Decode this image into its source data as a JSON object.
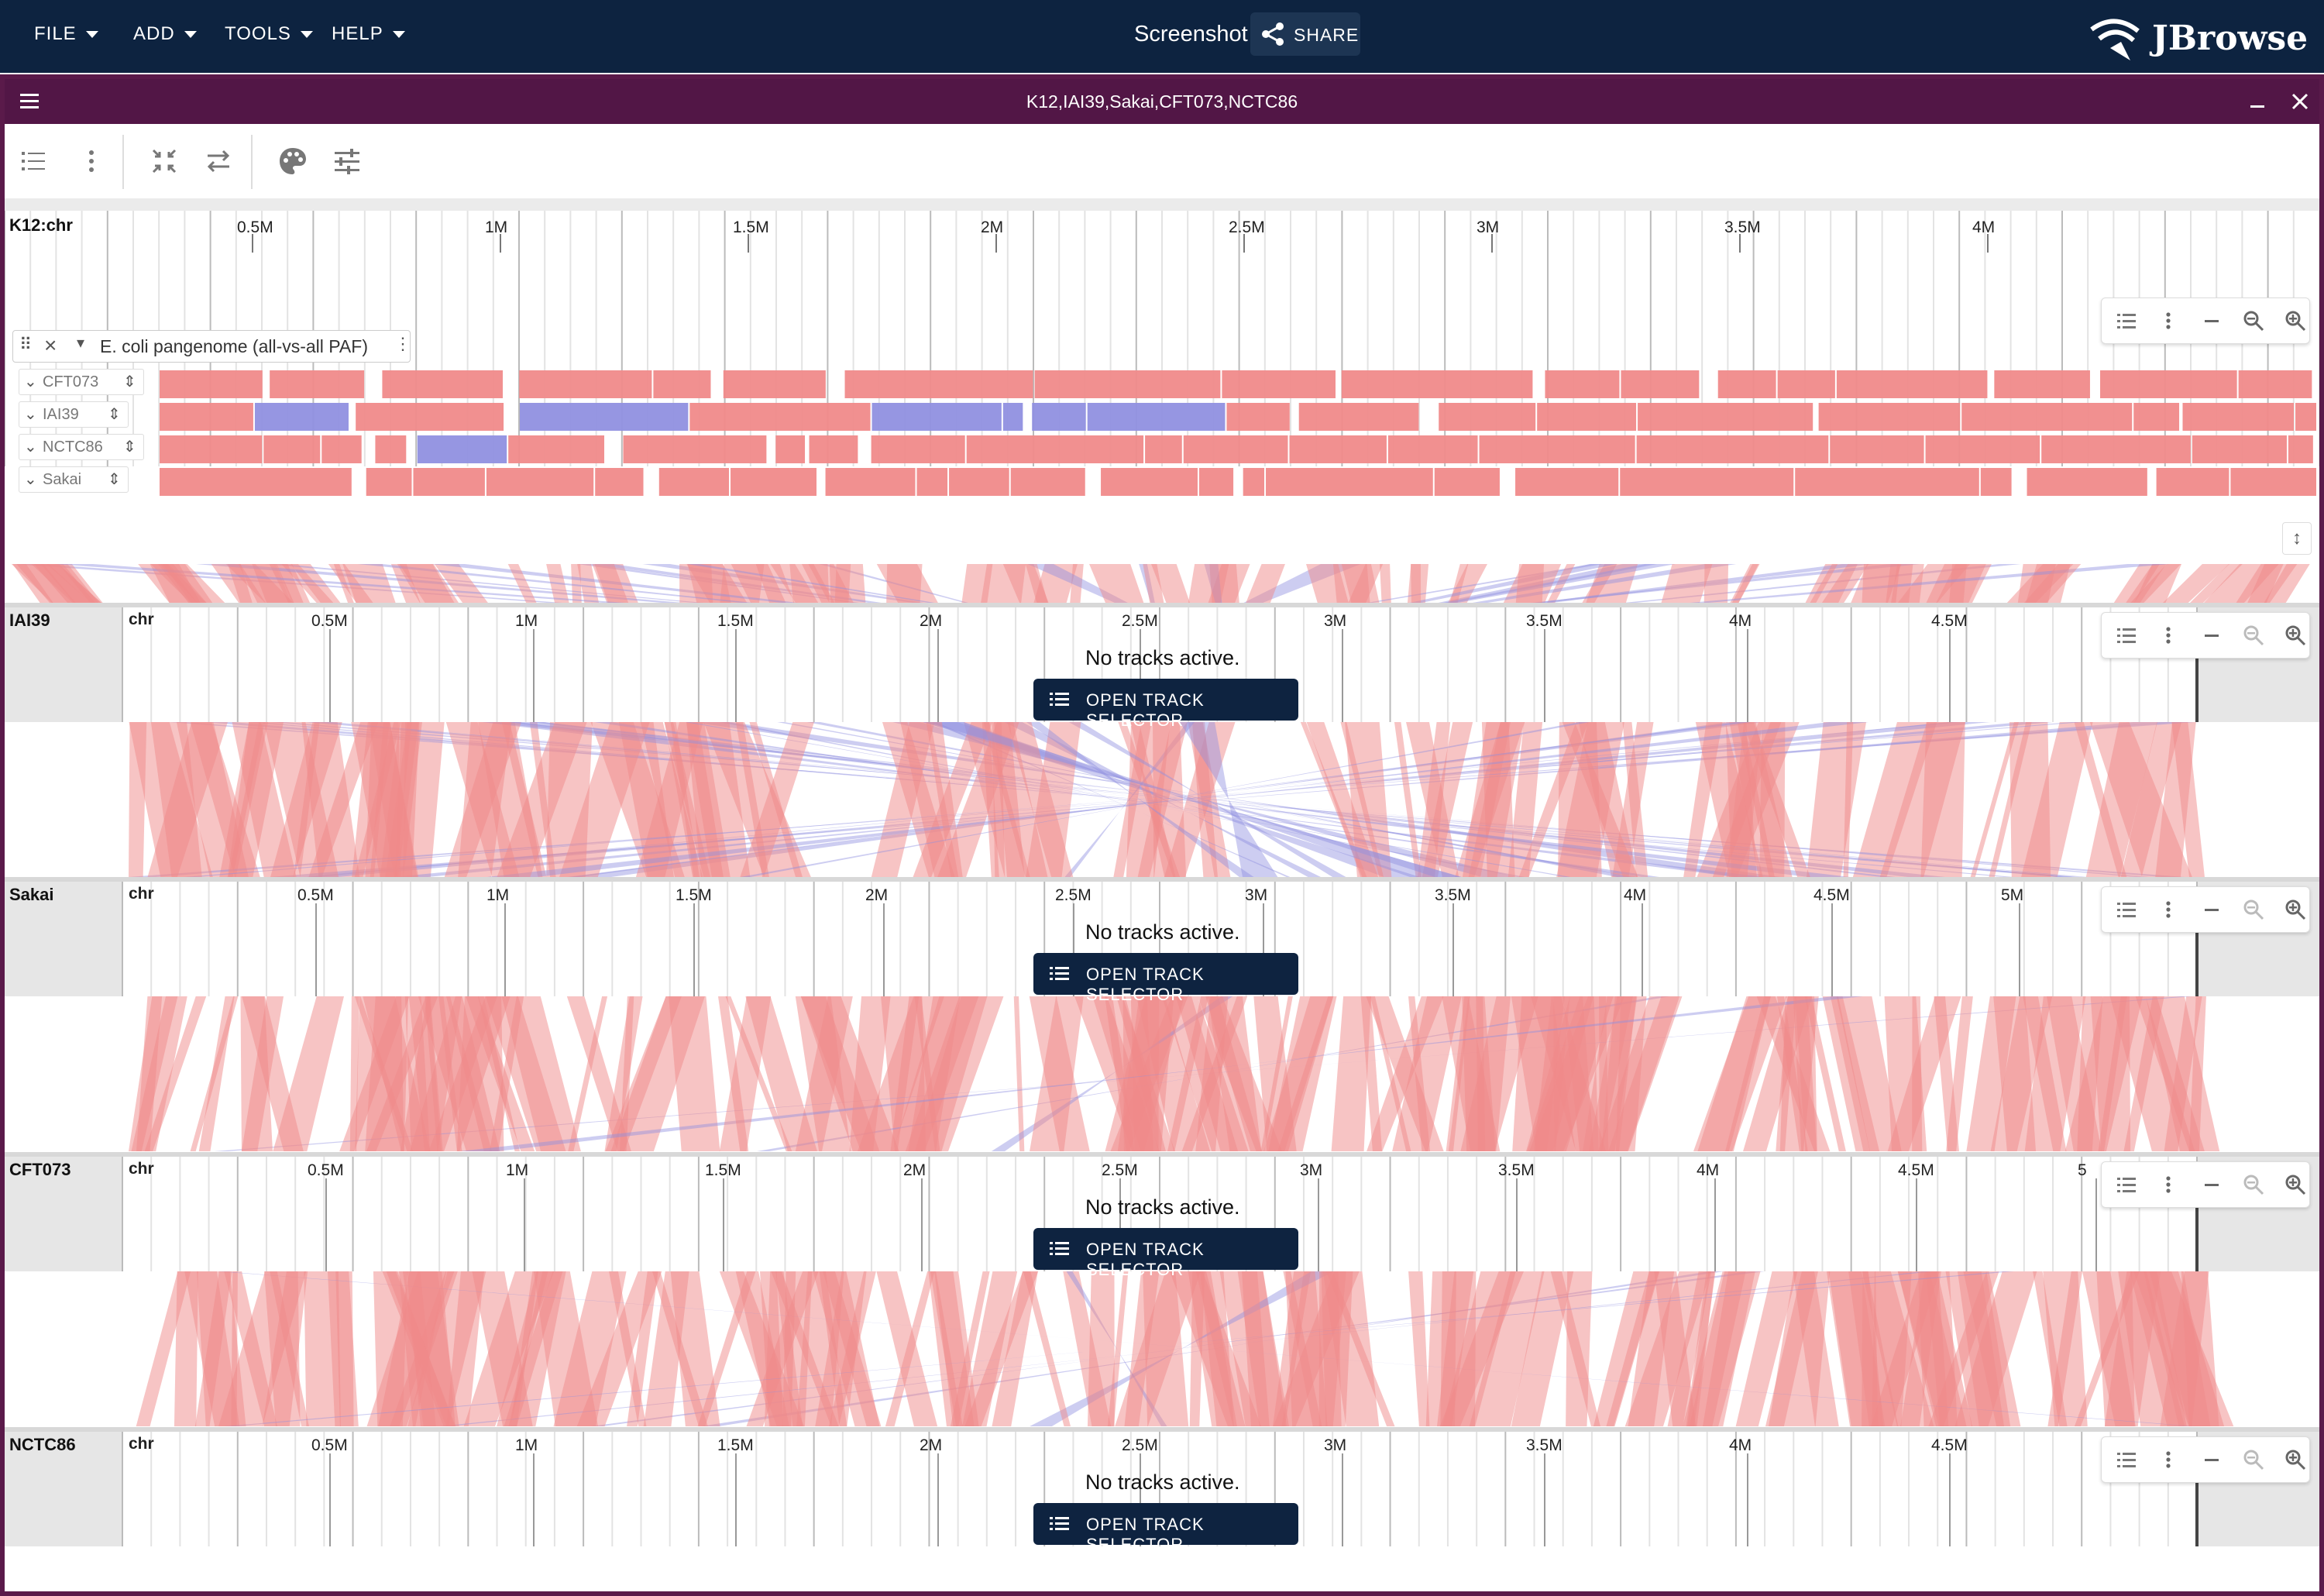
{
  "app": {
    "menus": [
      "FILE",
      "ADD",
      "TOOLS",
      "HELP"
    ],
    "screenshot_title": "Screenshot",
    "share_label": "SHARE",
    "logo_text": "JBrowse"
  },
  "view": {
    "title": "K12,IAI39,Sakai,CFT073,NCTC86",
    "minimize_icon": "minimize-icon",
    "close_icon": "close-icon",
    "toolbar_icons": [
      "track-list-icon",
      "more-vert-icon",
      "collapse-icon",
      "swap-icon",
      "palette-icon",
      "tune-icon"
    ]
  },
  "genomes": [
    {
      "name": "K12:chr",
      "label": "K12:chr",
      "ticks": [
        "0.5M",
        "1M",
        "1.5M",
        "2M",
        "2.5M",
        "3M",
        "3.5M",
        "4M"
      ]
    },
    {
      "name": "IAI39",
      "label": "IAI39",
      "chr": "chr",
      "ticks": [
        "0.5M",
        "1M",
        "1.5M",
        "2M",
        "2.5M",
        "3M",
        "3.5M",
        "4M",
        "4.5M"
      ],
      "no_tracks": "No tracks active.",
      "button": "OPEN TRACK SELECTOR"
    },
    {
      "name": "Sakai",
      "label": "Sakai",
      "chr": "chr",
      "ticks": [
        "0.5M",
        "1M",
        "1.5M",
        "2M",
        "2.5M",
        "3M",
        "3.5M",
        "4M",
        "4.5M",
        "5M"
      ],
      "no_tracks": "No tracks active.",
      "button": "OPEN TRACK SELECTOR"
    },
    {
      "name": "CFT073",
      "label": "CFT073",
      "chr": "chr",
      "ticks": [
        "0.5M",
        "1M",
        "1.5M",
        "2M",
        "2.5M",
        "3M",
        "3.5M",
        "4M",
        "4.5M",
        "5"
      ],
      "no_tracks": "No tracks active.",
      "button": "OPEN TRACK SELECTOR"
    },
    {
      "name": "NCTC86",
      "label": "NCTC86",
      "chr": "chr",
      "ticks": [
        "0.5M",
        "1M",
        "1.5M",
        "2M",
        "2.5M",
        "3M",
        "3.5M",
        "4M",
        "4.5M"
      ],
      "no_tracks": "No tracks active.",
      "button": "OPEN TRACK SELECTOR"
    }
  ],
  "track": {
    "name": "E. coli pangenome (all-vs-all PAF)",
    "subtracks": [
      "CFT073",
      "IAI39",
      "NCTC86",
      "Sakai"
    ]
  },
  "colors": {
    "topbar": "#0d2340",
    "view_header": "#521646",
    "forward_match": "#f08a8a",
    "reverse_match": "#9090e0"
  }
}
